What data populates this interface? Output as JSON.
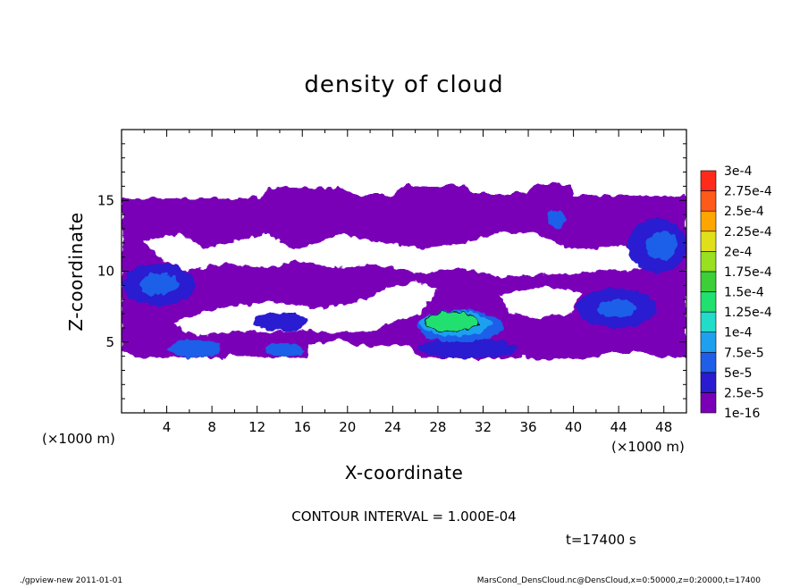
{
  "chart_data": {
    "type": "heatmap",
    "title": "density of cloud",
    "xlabel": "X-coordinate",
    "ylabel": "Z-coordinate",
    "x_unit_label": "(×1000 m)",
    "z_unit_label": "(×1000 m)",
    "xlim": [
      0,
      50
    ],
    "ylim": [
      0,
      20
    ],
    "x_ticks": [
      4,
      8,
      12,
      16,
      20,
      24,
      28,
      32,
      36,
      40,
      44,
      48
    ],
    "y_ticks": [
      5,
      10,
      15
    ],
    "colorbar": {
      "levels": [
        "1e-16",
        "2.5e-5",
        "5e-5",
        "7.5e-5",
        "1e-4",
        "1.25e-4",
        "1.5e-4",
        "1.75e-4",
        "2e-4",
        "2.25e-4",
        "2.5e-4",
        "2.75e-4",
        "3e-4"
      ],
      "colors": [
        "#7a00b8",
        "#2a1ad0",
        "#1f5ee8",
        "#1ea0f0",
        "#20dcc8",
        "#20e070",
        "#3ccf38",
        "#98e020",
        "#e0e01a",
        "#ffa500",
        "#ff5a1a",
        "#ff2a1a",
        "#ff8a80"
      ]
    },
    "regions": [
      {
        "name": "purple cloud layer (1e-16 to 2.5e-5)",
        "x_range": [
          0,
          50
        ],
        "z_range": [
          4,
          15.3
        ]
      },
      {
        "name": "blue cells (2.5e-5 to 7.5e-5)",
        "x_range": [
          0,
          8
        ],
        "z_range": [
          4,
          13
        ]
      },
      {
        "name": "blue cells right (2.5e-5 to 7.5e-5)",
        "x_range": [
          40,
          50
        ],
        "z_range": [
          4,
          14
        ]
      },
      {
        "name": "green core (1e-4 to 1.5e-4)",
        "x_range": [
          26.5,
          32.5
        ],
        "z_range": [
          5.8,
          7.5
        ]
      }
    ],
    "contour_interval": "CONTOUR INTERVAL = 1.000E-04",
    "time_label": "t=17400 s"
  },
  "footer": {
    "left": "./gpview-new   2011-01-01",
    "right": "MarsCond_DensCloud.nc@DensCloud,x=0:50000,z=0:20000,t=17400"
  }
}
